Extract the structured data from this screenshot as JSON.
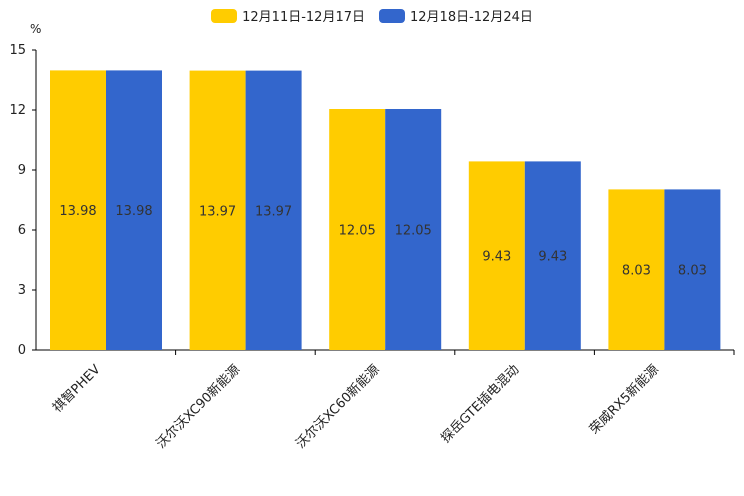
{
  "chart_data": {
    "type": "bar",
    "unit_label": "%",
    "categories": [
      "祺智PHEV",
      "沃尔沃XC90新能源",
      "沃尔沃XC60新能源",
      "探岳GTE插电混动",
      "荣威RX5新能源"
    ],
    "series": [
      {
        "name": "12月11日-12月17日",
        "color": "#FFCC00",
        "values": [
          13.98,
          13.97,
          12.05,
          9.43,
          8.03
        ]
      },
      {
        "name": "12月18日-12月24日",
        "color": "#3366CC",
        "values": [
          13.98,
          13.97,
          12.05,
          9.43,
          8.03
        ]
      }
    ],
    "ylim": [
      0,
      15
    ],
    "yticks": [
      0,
      3,
      6,
      9,
      12,
      15
    ],
    "xlabel": "",
    "ylabel": "%",
    "legend_position": "top-center",
    "grid": false
  }
}
